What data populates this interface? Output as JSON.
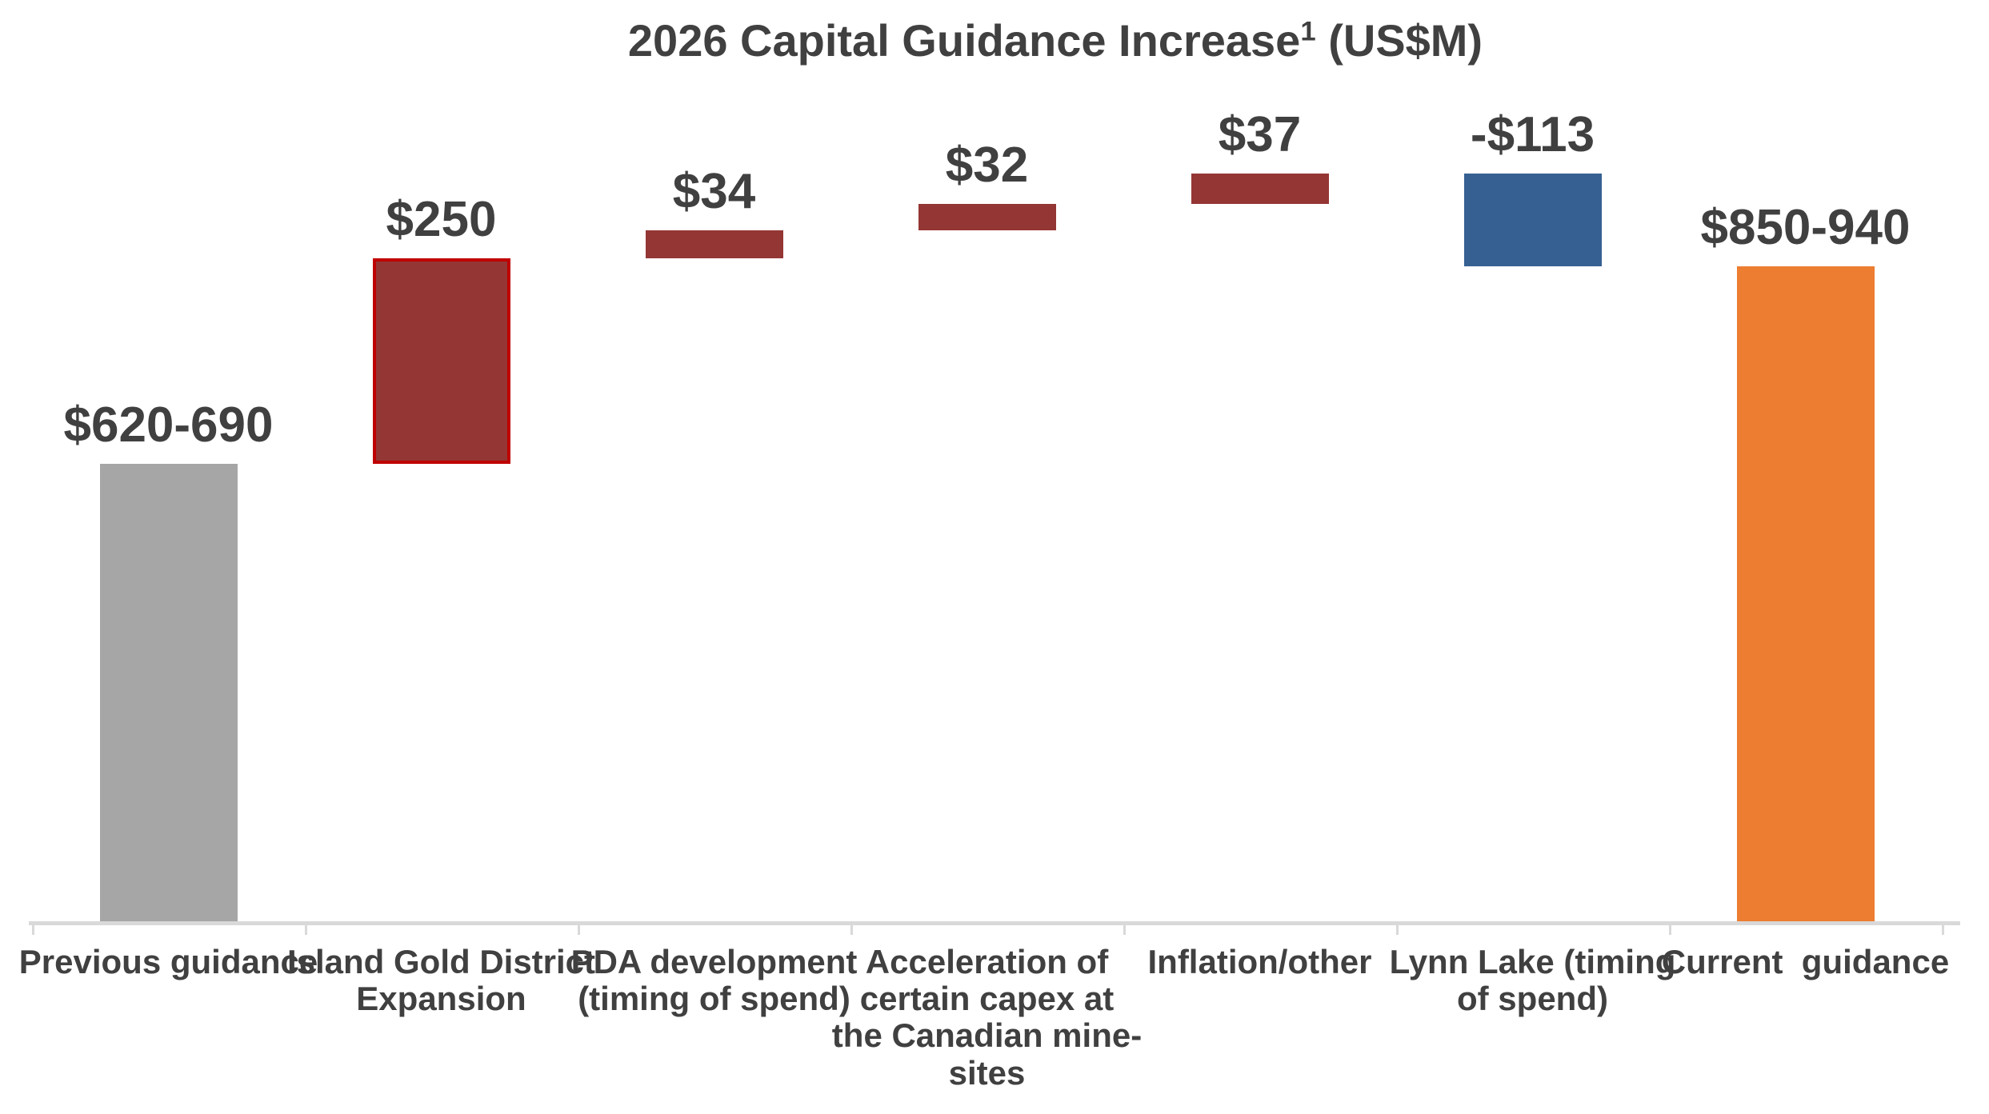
{
  "title": {
    "main": "2026 Capital Guidance Increase",
    "superscript": "1",
    "suffix": " (US$M)"
  },
  "colors": {
    "text": "#404040",
    "axis": "#D9D9D9",
    "previous_guidance_gray": "#A6A6A6",
    "increase_dark_red": "#943634",
    "highlight_border_red": "#C00000",
    "decrease_blue": "#366092",
    "current_guidance_orange": "#ED7D31",
    "background": "#FFFFFF"
  },
  "chart_data": {
    "type": "bar",
    "subtype": "waterfall",
    "title": "2026 Capital Guidance Increase¹ (US$M)",
    "grid": false,
    "legend": false,
    "value_axis": {
      "visible": false,
      "min": 100,
      "max": 1180
    },
    "bars": [
      {
        "name": "Previous guidance",
        "axis_label": "Previous guidance",
        "label": "$620-690",
        "kind": "absolute",
        "range_low": 620,
        "range_high": 690,
        "plot_value": 655,
        "color": "#A6A6A6"
      },
      {
        "name": "Island Gold District Expansion",
        "axis_label": "Island Gold District\nExpansion",
        "label": "$250",
        "kind": "delta",
        "value": 250,
        "color": "#943634",
        "border_color": "#C00000"
      },
      {
        "name": "PDA development (timing of spend)",
        "axis_label": "PDA development\n(timing of spend)",
        "label": "$34",
        "kind": "delta",
        "value": 34,
        "color": "#943634"
      },
      {
        "name": "Acceleration of certain capex at the Canadian mine-sites",
        "axis_label": "Acceleration of\ncertain capex at\nthe Canadian mine-\nsites",
        "label": "$32",
        "kind": "delta",
        "value": 32,
        "color": "#943634"
      },
      {
        "name": "Inflation/other",
        "axis_label": "Inflation/other",
        "label": "$37",
        "kind": "delta",
        "value": 37,
        "color": "#943634"
      },
      {
        "name": "Lynn Lake (timing of spend)",
        "axis_label": "Lynn Lake (timing\nof spend)",
        "label": "-$113",
        "kind": "delta",
        "value": -113,
        "color": "#366092"
      },
      {
        "name": "Current  guidance",
        "axis_label": "Current  guidance",
        "label": "$850-940",
        "kind": "absolute",
        "range_low": 850,
        "range_high": 940,
        "plot_value": 895,
        "color": "#ED7D31"
      }
    ]
  }
}
